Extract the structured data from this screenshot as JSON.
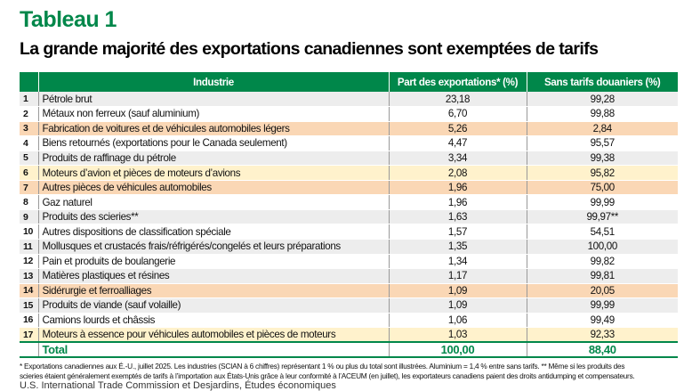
{
  "title": "Tableau 1",
  "subtitle": "La grande majorité des exportations canadiennes sont exemptées de tarifs",
  "headers": [
    "",
    "Industrie",
    "Part des exportations* (%)",
    "Sans tarifs douaniers (%)"
  ],
  "rows": [
    {
      "n": "1",
      "industry": "Pétrole brut",
      "share": "23,18",
      "free": "99,28",
      "hl": "odd"
    },
    {
      "n": "2",
      "industry": "Métaux non ferreux (sauf aluminium)",
      "share": "6,70",
      "free": "99,88",
      "hl": "even"
    },
    {
      "n": "3",
      "industry": "Fabrication de voitures et de véhicules automobiles légers",
      "share": "5,26",
      "free": "2,84",
      "hl": "orange"
    },
    {
      "n": "4",
      "industry": "Biens retournés (exportations pour le Canada seulement)",
      "share": "4,47",
      "free": "95,57",
      "hl": "even"
    },
    {
      "n": "5",
      "industry": "Produits de raffinage du pétrole",
      "share": "3,34",
      "free": "99,38",
      "hl": "odd"
    },
    {
      "n": "6",
      "industry": "Moteurs d’avion et pièces de moteurs d’avions",
      "share": "2,08",
      "free": "95,82",
      "hl": "yellow"
    },
    {
      "n": "7",
      "industry": "Autres pièces de véhicules automobiles",
      "share": "1,96",
      "free": "75,00",
      "hl": "orange"
    },
    {
      "n": "8",
      "industry": "Gaz naturel",
      "share": "1,96",
      "free": "99,99",
      "hl": "even"
    },
    {
      "n": "9",
      "industry": "Produits des scieries**",
      "share": "1,63",
      "free": "99,97**",
      "hl": "odd"
    },
    {
      "n": "10",
      "industry": "Autres dispositions de classification spéciale",
      "share": "1,57",
      "free": "54,51",
      "hl": "even"
    },
    {
      "n": "11",
      "industry": "Mollusques et crustacés frais/réfrigérés/congelés et leurs préparations",
      "share": "1,35",
      "free": "100,00",
      "hl": "odd"
    },
    {
      "n": "12",
      "industry": "Pain et produits de boulangerie",
      "share": "1,34",
      "free": "99,82",
      "hl": "even"
    },
    {
      "n": "13",
      "industry": "Matières plastiques et résines",
      "share": "1,17",
      "free": "99,81",
      "hl": "odd"
    },
    {
      "n": "14",
      "industry": "Sidérurgie et ferroalliages",
      "share": "1,09",
      "free": "20,05",
      "hl": "orange"
    },
    {
      "n": "15",
      "industry": "Produits de viande (sauf volaille)",
      "share": "1,09",
      "free": "99,99",
      "hl": "odd"
    },
    {
      "n": "16",
      "industry": "Camions lourds et châssis",
      "share": "1,06",
      "free": "99,49",
      "hl": "even"
    },
    {
      "n": "17",
      "industry": "Moteurs à essence pour véhicules automobiles et pièces de moteurs",
      "share": "1,03",
      "free": "92,33",
      "hl": "yellow"
    }
  ],
  "total": {
    "label": "Total",
    "share": "100,00",
    "free": "88,40"
  },
  "note_line1": "* Exportations canadiennes aux É.-U., juillet 2025. Les industries (SCIAN à 6 chiffres) représentant 1 % ou plus du total sont illustrées. Aluminium = 1,4 % entre sans tarifs. ** Même si les produits des",
  "note_line2": "scieries étaient généralement exemptés de tarifs à l’importation aux États-Unis grâce à leur conformité à l’ACEUM (en juillet), les exportateurs canadiens paient des droits antidumping et compensateurs.",
  "source": "U.S. International Trade Commission et Desjardins, Études économiques"
}
